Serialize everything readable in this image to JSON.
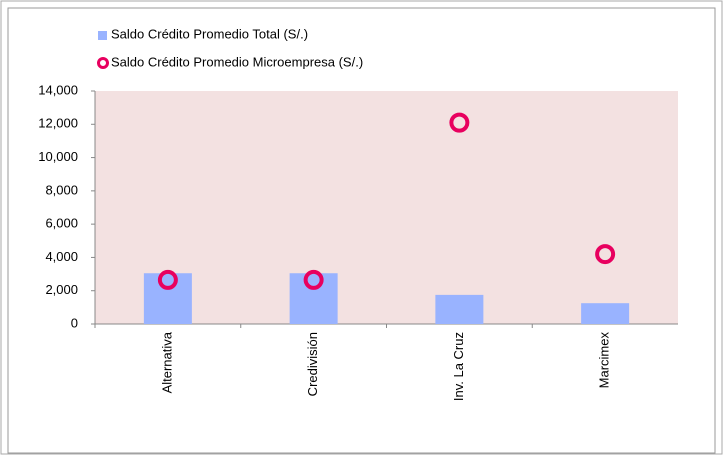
{
  "chart_data": {
    "type": "combo",
    "categories": [
      "Alternativa",
      "Credivisión",
      "Inv. La Cruz",
      "Marcimex"
    ],
    "series": [
      {
        "name": "Saldo Crédito Promedio Total (S/.)",
        "type": "bar",
        "color": "#99b3ff",
        "values": [
          3050,
          3050,
          1750,
          1250
        ]
      },
      {
        "name": "Saldo Crédito Promedio Microempresa (S/.)",
        "type": "scatter",
        "color": "#e8005f",
        "values": [
          2650,
          2650,
          12100,
          4200
        ]
      }
    ],
    "ylim": [
      0,
      14000
    ],
    "yticks": [
      0,
      {
        "value": 2000,
        "label": "2,000"
      },
      {
        "value": 4000,
        "label": "4,000"
      },
      {
        "value": 6000,
        "label": "6,000"
      },
      {
        "value": 8000,
        "label": "8,000"
      },
      {
        "value": 10000,
        "label": "10,000"
      },
      {
        "value": 12000,
        "label": "12,000"
      },
      {
        "value": 14000,
        "label": "14,000"
      }
    ],
    "plot_background": "#f3e1e1"
  }
}
